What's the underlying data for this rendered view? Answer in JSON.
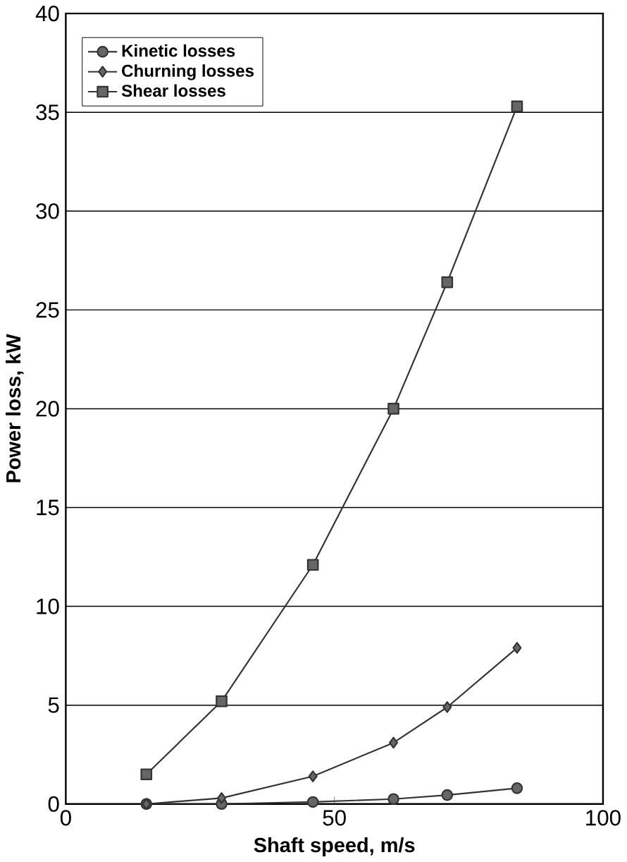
{
  "chart_data": {
    "type": "line",
    "xlabel": "Shaft speed, m/s",
    "ylabel": "Power loss, kW",
    "xlim": [
      0,
      100
    ],
    "ylim": [
      0,
      40
    ],
    "xticks": [
      0,
      50,
      100
    ],
    "yticks": [
      0,
      5,
      10,
      15,
      20,
      25,
      30,
      35,
      40
    ],
    "grid": "y",
    "legend": "top left",
    "line_style": "solid",
    "x": [
      15,
      29,
      46,
      61,
      71,
      84
    ],
    "series": [
      {
        "name": "Kinetic losses",
        "color": "#333333",
        "marker": "circle",
        "values": [
          0,
          0,
          0.1,
          0.25,
          0.45,
          0.8
        ]
      },
      {
        "name": "Churning losses",
        "color": "#333333",
        "marker": "diamond",
        "values": [
          0,
          0.3,
          1.4,
          3.1,
          4.9,
          7.9
        ]
      },
      {
        "name": "Shear losses",
        "color": "#333333",
        "marker": "square",
        "values": [
          1.5,
          5.2,
          12.1,
          20,
          26.4,
          35.3
        ]
      }
    ]
  }
}
